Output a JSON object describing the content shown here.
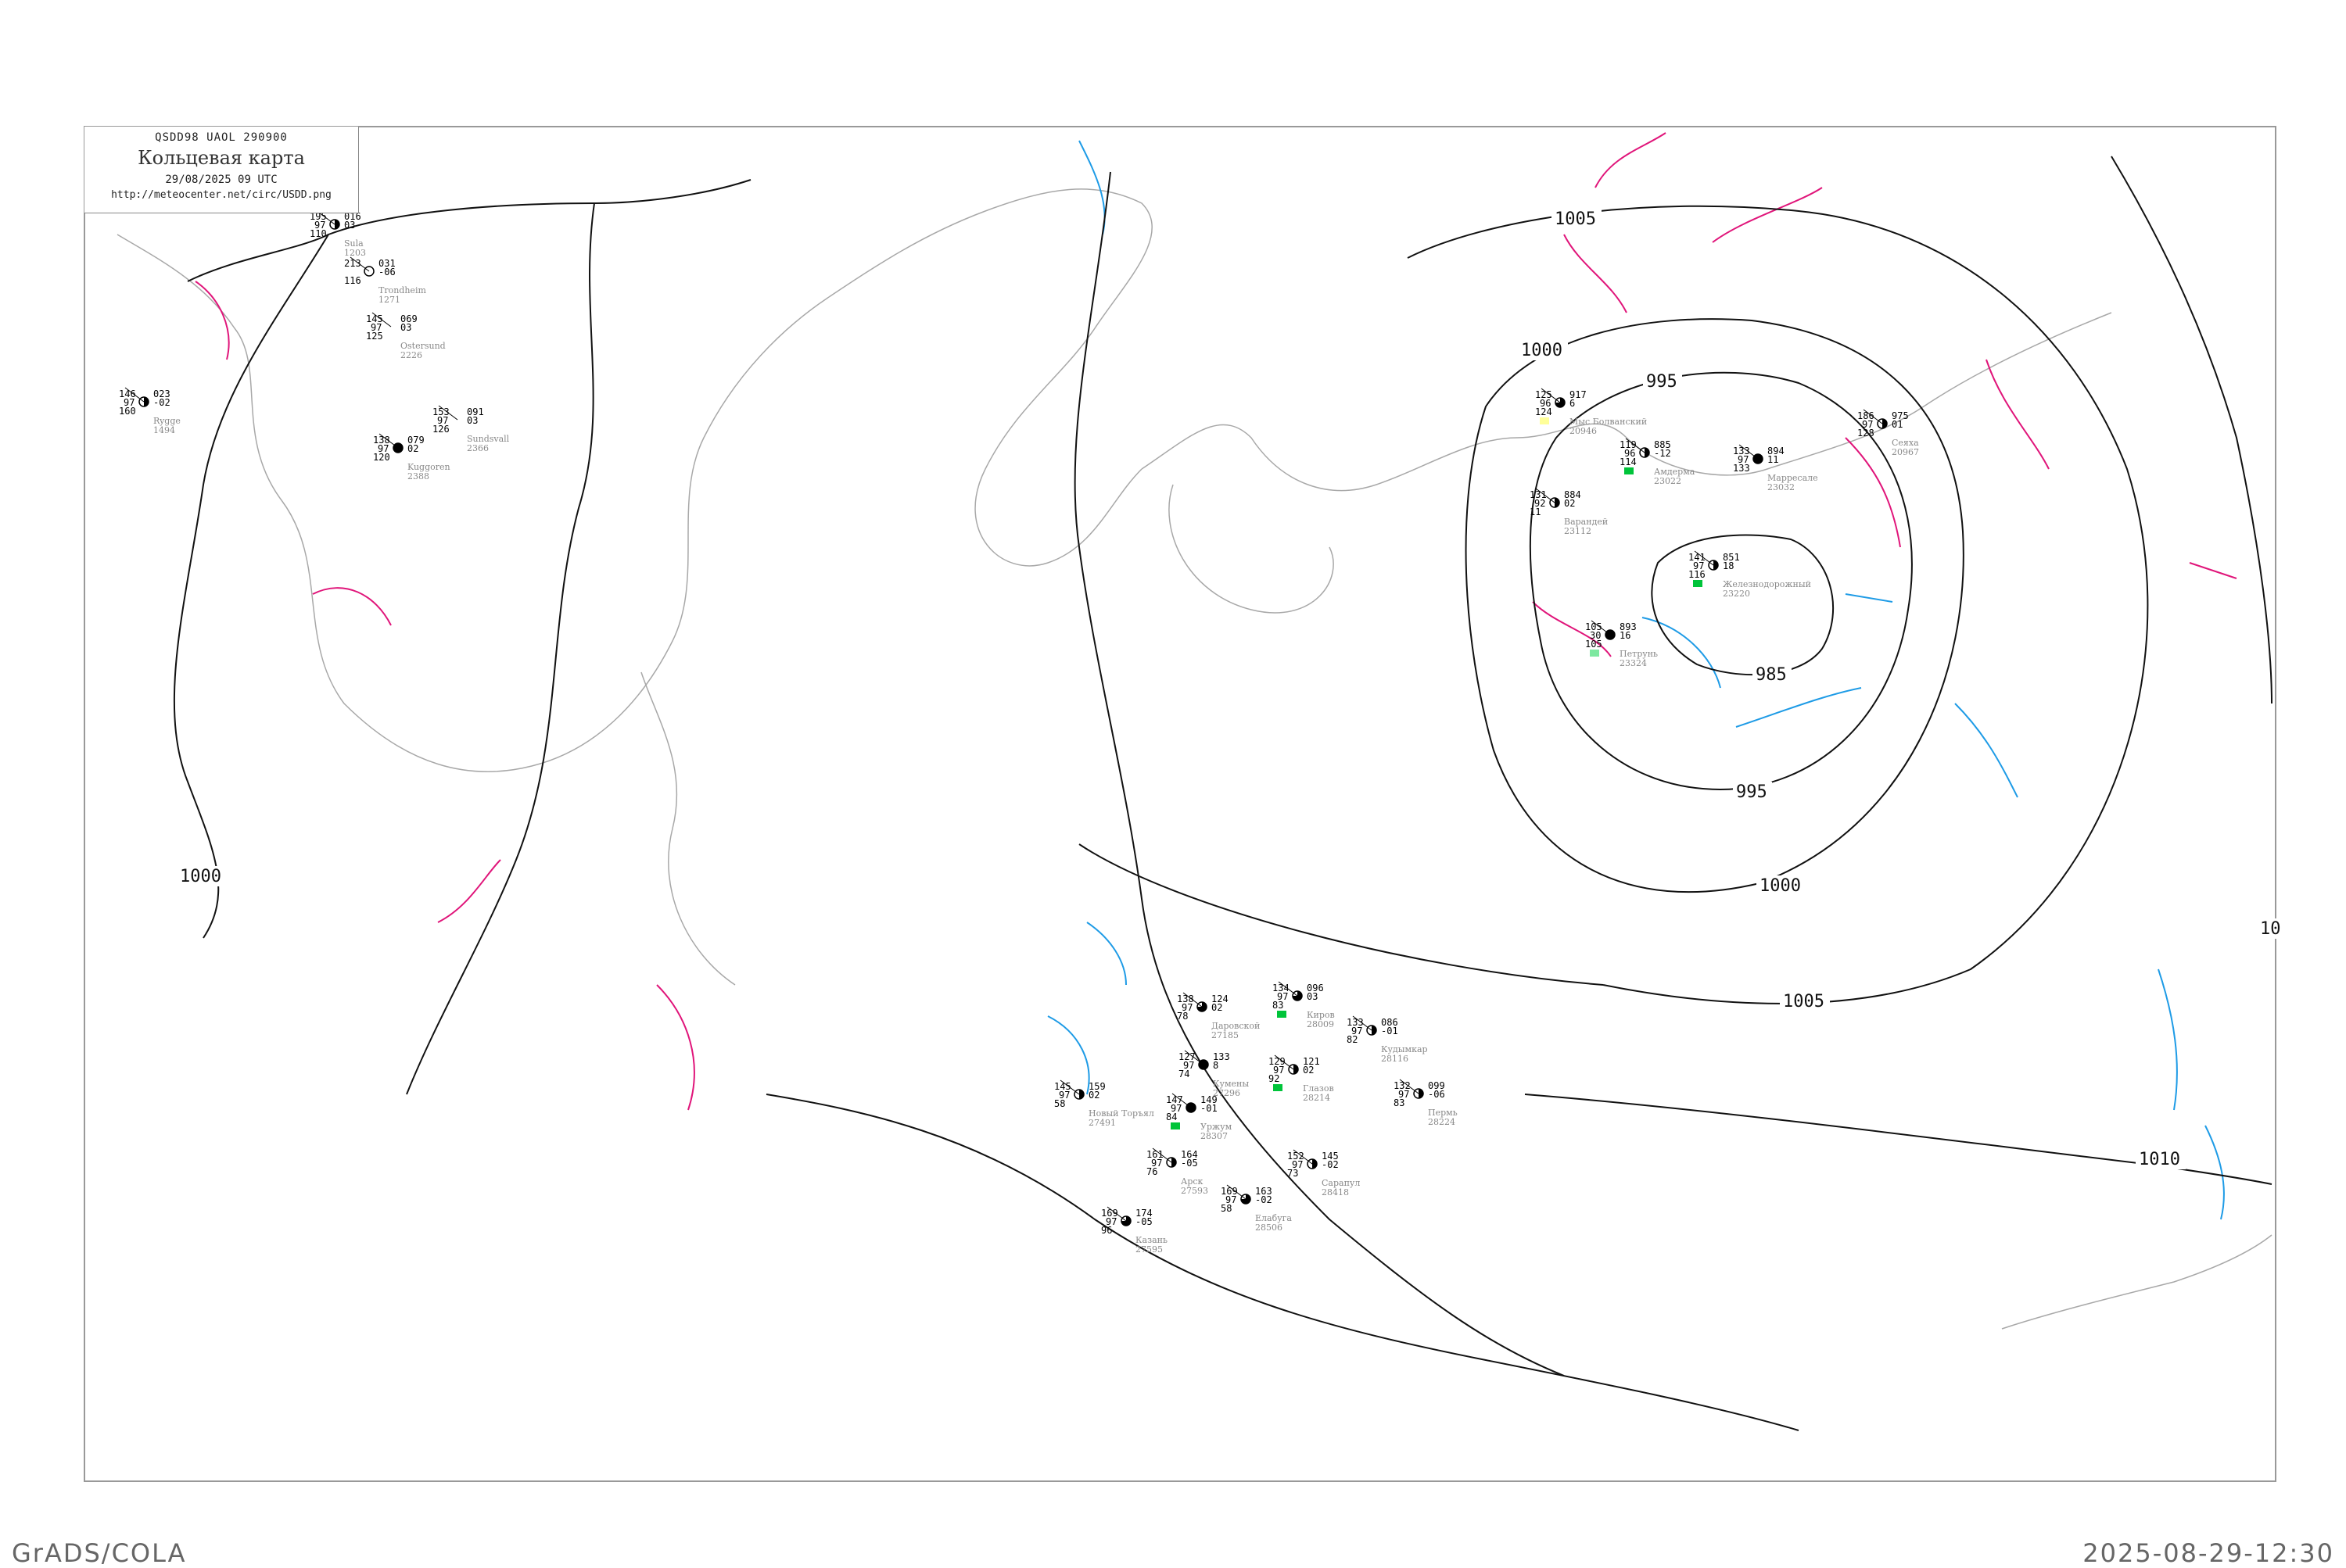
{
  "header": {
    "code": "QSDD98  UAOL  290900",
    "title": "Кольцевая карта",
    "date": "29/08/2025 09 UTC",
    "url": "http://meteocenter.net/circ/USDD.png"
  },
  "footer": {
    "software": "GrADS/COLA",
    "timestamp": "2025-08-29-12:30"
  },
  "colors": {
    "isobar": "#111111",
    "pressure_tendency_positive": "#e0157a",
    "pressure_tendency_negative": "#1e9be6",
    "coastline": "#a8a8a8",
    "precip_marker": "#00c43a",
    "fog_marker": "#ffff99"
  },
  "isobar_labels": [
    "1005",
    "1000",
    "995",
    "985",
    "995",
    "1000",
    "1005",
    "1010",
    "1000",
    "10"
  ],
  "stations": [
    {
      "name": "Мыс Болванский",
      "id": "20946",
      "t": "125",
      "td": "96",
      "p": "917",
      "dp": "6",
      "vis": "124",
      "cloud": "three-quarter",
      "marker": "fog"
    },
    {
      "name": "Амдерма",
      "id": "23022",
      "t": "119",
      "td": "96",
      "p": "885",
      "dp": "-12",
      "vis": "114",
      "cloud": "half",
      "marker": "precip"
    },
    {
      "name": "Марресале",
      "id": "23032",
      "t": "133",
      "td": "97",
      "p": "894",
      "dp": "11",
      "vis": "133",
      "cloud": "full",
      "marker": ""
    },
    {
      "name": "Сеяха",
      "id": "20967",
      "t": "186",
      "td": "97",
      "p": "975",
      "dp": "01",
      "vis": "128",
      "cloud": "half",
      "marker": ""
    },
    {
      "name": "Варандей",
      "id": "23112",
      "t": "131",
      "td": "92",
      "p": "884",
      "dp": "02",
      "vis": "11",
      "cloud": "half",
      "marker": ""
    },
    {
      "name": "Железнодорожный",
      "id": "23220",
      "t": "141",
      "td": "97",
      "p": "851",
      "dp": "18",
      "vis": "116",
      "cloud": "half",
      "marker": "precip"
    },
    {
      "name": "Петрунь",
      "id": "23324",
      "t": "105",
      "td": "30",
      "p": "893",
      "dp": "16",
      "vis": "105",
      "cloud": "full",
      "marker": "light"
    },
    {
      "name": "Киров",
      "id": "28009",
      "t": "134",
      "td": "97",
      "p": "096",
      "dp": "03",
      "vis": "83",
      "cloud": "three-quarter",
      "marker": "precip"
    },
    {
      "name": "Глазов",
      "id": "28214",
      "t": "129",
      "td": "97",
      "p": "121",
      "dp": "02",
      "vis": "92",
      "cloud": "half",
      "marker": "precip"
    },
    {
      "name": "Кудымкар",
      "id": "28116",
      "t": "133",
      "td": "97",
      "p": "086",
      "dp": "-01",
      "vis": "82",
      "cloud": "half",
      "marker": ""
    },
    {
      "name": "Пермь",
      "id": "28224",
      "t": "132",
      "td": "97",
      "p": "099",
      "dp": "-06",
      "vis": "83",
      "cloud": "half",
      "marker": ""
    },
    {
      "name": "Кумены",
      "id": "27296",
      "t": "127",
      "td": "97",
      "p": "133",
      "dp": "8",
      "vis": "74",
      "cloud": "full",
      "marker": ""
    },
    {
      "name": "Даровской",
      "id": "27185",
      "t": "138",
      "td": "97",
      "p": "124",
      "dp": "02",
      "vis": "78",
      "cloud": "three-quarter",
      "marker": ""
    },
    {
      "name": "Уржум",
      "id": "28307",
      "t": "147",
      "td": "97",
      "p": "149",
      "dp": "-01",
      "vis": "84",
      "cloud": "full",
      "marker": "precip"
    },
    {
      "name": "Арск",
      "id": "27593",
      "t": "161",
      "td": "97",
      "p": "164",
      "dp": "-05",
      "vis": "76",
      "cloud": "half",
      "marker": ""
    },
    {
      "name": "Казань",
      "id": "27595",
      "t": "169",
      "td": "97",
      "p": "174",
      "dp": "-05",
      "vis": "96",
      "cloud": "three-quarter",
      "marker": ""
    },
    {
      "name": "Елабуга",
      "id": "28506",
      "t": "169",
      "td": "97",
      "p": "163",
      "dp": "-02",
      "vis": "58",
      "cloud": "three-quarter",
      "marker": ""
    },
    {
      "name": "Сарапул",
      "id": "28418",
      "t": "152",
      "td": "97",
      "p": "145",
      "dp": "-02",
      "vis": "73",
      "cloud": "half",
      "marker": ""
    },
    {
      "name": "Новый Торъял",
      "id": "27491",
      "t": "145",
      "td": "97",
      "p": "159",
      "dp": "02",
      "vis": "58",
      "cloud": "half",
      "marker": ""
    },
    {
      "name": "Sula",
      "id": "1203",
      "t": "195",
      "td": "97",
      "p": "016",
      "dp": "03",
      "vis": "110",
      "cloud": "half",
      "marker": ""
    },
    {
      "name": "Ostersund",
      "id": "2226",
      "t": "145",
      "td": "97",
      "p": "069",
      "dp": "03",
      "vis": "125",
      "cloud": "none",
      "marker": ""
    },
    {
      "name": "Kuggoren",
      "id": "2388",
      "t": "138",
      "td": "97",
      "p": "079",
      "dp": "02",
      "vis": "120",
      "cloud": "full",
      "marker": ""
    },
    {
      "name": "Sundsvall",
      "id": "2366",
      "t": "153",
      "td": "97",
      "p": "091",
      "dp": "03",
      "vis": "126",
      "cloud": "none",
      "marker": ""
    },
    {
      "name": "Rygge",
      "id": "1494",
      "t": "146",
      "td": "97",
      "p": "023",
      "dp": "-02",
      "vis": "160",
      "cloud": "half",
      "marker": ""
    },
    {
      "name": "Trondheim",
      "id": "1271",
      "t": "213",
      "td": "",
      "p": "031",
      "dp": "-06",
      "vis": "116",
      "cloud": "empty",
      "marker": ""
    }
  ]
}
